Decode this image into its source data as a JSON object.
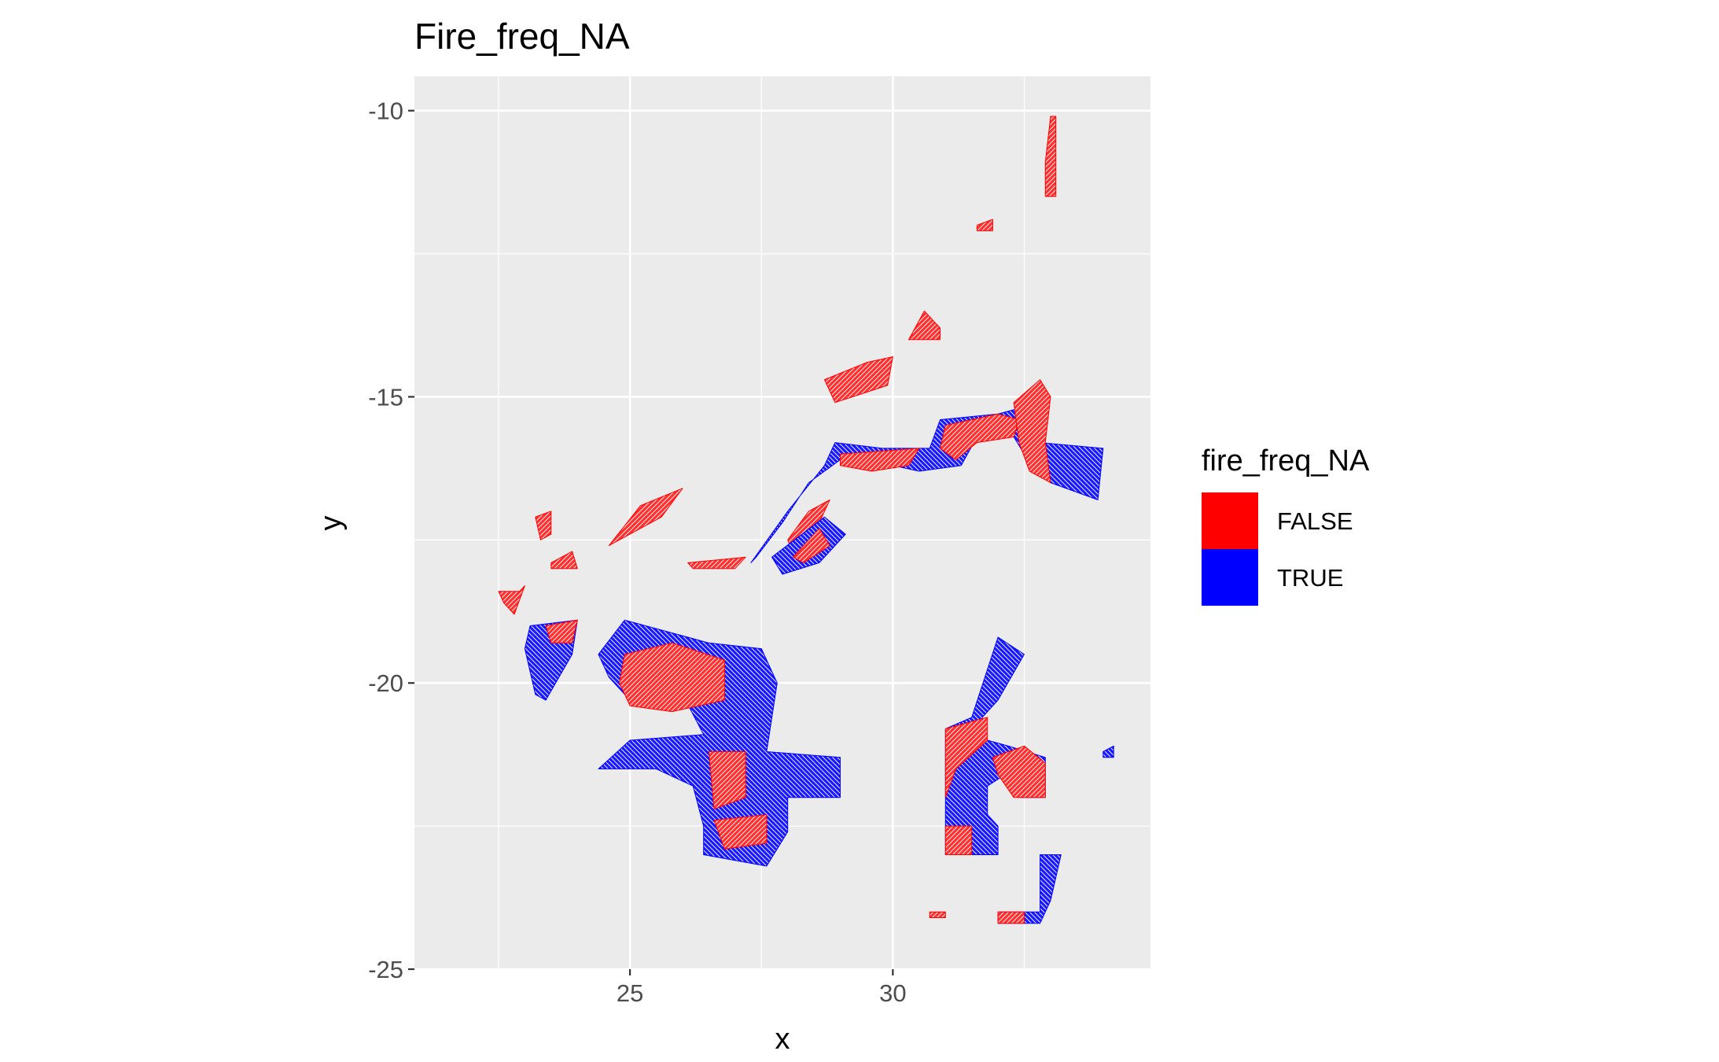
{
  "chart_data": {
    "type": "heatmap",
    "title": "Fire_freq_NA",
    "xlabel": "x",
    "ylabel": "y",
    "xlim": [
      20.9,
      34.9
    ],
    "ylim": [
      -25.0,
      -9.4
    ],
    "x_ticks": [
      25,
      30
    ],
    "y_ticks": [
      -10,
      -15,
      -20,
      -25
    ],
    "grid": true,
    "legend": {
      "title": "fire_freq_NA",
      "position": "right",
      "entries": [
        {
          "label": "FALSE",
          "color": "#ff0000"
        },
        {
          "label": "TRUE",
          "color": "#0000ff"
        }
      ]
    },
    "regions": [
      {
        "category": "FALSE",
        "points": [
          [
            33.0,
            -10.1
          ],
          [
            33.1,
            -10.1
          ],
          [
            33.1,
            -11.5
          ],
          [
            32.9,
            -11.5
          ],
          [
            32.9,
            -10.9
          ]
        ]
      },
      {
        "category": "FALSE",
        "points": [
          [
            31.6,
            -12.0
          ],
          [
            31.9,
            -11.9
          ],
          [
            31.9,
            -12.1
          ],
          [
            31.6,
            -12.1
          ]
        ]
      },
      {
        "category": "FALSE",
        "points": [
          [
            30.3,
            -14.0
          ],
          [
            30.6,
            -13.5
          ],
          [
            30.9,
            -13.8
          ],
          [
            30.9,
            -14.0
          ]
        ]
      },
      {
        "category": "FALSE",
        "points": [
          [
            28.7,
            -14.7
          ],
          [
            29.5,
            -14.4
          ],
          [
            30.0,
            -14.3
          ],
          [
            29.9,
            -14.8
          ],
          [
            28.9,
            -15.1
          ]
        ]
      },
      {
        "category": "FALSE",
        "points": [
          [
            23.2,
            -17.1
          ],
          [
            23.5,
            -17.0
          ],
          [
            23.5,
            -17.4
          ],
          [
            23.3,
            -17.5
          ]
        ]
      },
      {
        "category": "FALSE",
        "points": [
          [
            23.5,
            -17.9
          ],
          [
            23.9,
            -17.7
          ],
          [
            24.0,
            -18.0
          ],
          [
            23.5,
            -18.0
          ]
        ]
      },
      {
        "category": "FALSE",
        "points": [
          [
            24.6,
            -17.6
          ],
          [
            25.2,
            -16.9
          ],
          [
            26.0,
            -16.6
          ],
          [
            25.6,
            -17.1
          ],
          [
            24.8,
            -17.5
          ]
        ]
      },
      {
        "category": "FALSE",
        "points": [
          [
            22.5,
            -18.4
          ],
          [
            22.9,
            -18.4
          ],
          [
            23.0,
            -18.3
          ],
          [
            22.8,
            -18.8
          ],
          [
            22.6,
            -18.6
          ]
        ]
      },
      {
        "category": "TRUE",
        "points": [
          [
            23.1,
            -19.0
          ],
          [
            24.0,
            -18.9
          ],
          [
            23.9,
            -19.5
          ],
          [
            23.4,
            -20.3
          ],
          [
            23.2,
            -20.2
          ],
          [
            23.0,
            -19.4
          ]
        ]
      },
      {
        "category": "FALSE",
        "points": [
          [
            23.4,
            -19.0
          ],
          [
            24.0,
            -18.9
          ],
          [
            23.9,
            -19.3
          ],
          [
            23.5,
            -19.3
          ]
        ]
      },
      {
        "category": "TRUE",
        "points": [
          [
            24.4,
            -19.5
          ],
          [
            24.9,
            -18.9
          ],
          [
            26.5,
            -19.3
          ],
          [
            27.5,
            -19.4
          ],
          [
            27.8,
            -20.0
          ],
          [
            27.6,
            -21.2
          ],
          [
            29.0,
            -21.3
          ],
          [
            29.0,
            -22.0
          ],
          [
            28.0,
            -22.0
          ],
          [
            28.0,
            -22.6
          ],
          [
            27.6,
            -23.2
          ],
          [
            26.4,
            -23.0
          ],
          [
            26.4,
            -22.5
          ],
          [
            26.2,
            -21.8
          ],
          [
            25.5,
            -21.5
          ],
          [
            24.4,
            -21.5
          ],
          [
            25.0,
            -21.0
          ],
          [
            26.4,
            -20.9
          ],
          [
            26.0,
            -20.2
          ],
          [
            25.0,
            -20.3
          ],
          [
            24.6,
            -19.9
          ]
        ]
      },
      {
        "category": "FALSE",
        "points": [
          [
            24.9,
            -19.5
          ],
          [
            25.8,
            -19.3
          ],
          [
            26.8,
            -19.6
          ],
          [
            26.8,
            -20.3
          ],
          [
            25.8,
            -20.5
          ],
          [
            25.0,
            -20.4
          ],
          [
            24.8,
            -20.0
          ]
        ]
      },
      {
        "category": "FALSE",
        "points": [
          [
            26.5,
            -21.2
          ],
          [
            27.2,
            -21.2
          ],
          [
            27.2,
            -22.0
          ],
          [
            26.6,
            -22.2
          ]
        ]
      },
      {
        "category": "FALSE",
        "points": [
          [
            26.6,
            -22.4
          ],
          [
            27.6,
            -22.3
          ],
          [
            27.6,
            -22.8
          ],
          [
            26.8,
            -22.9
          ]
        ]
      },
      {
        "category": "TRUE",
        "points": [
          [
            27.3,
            -17.9
          ],
          [
            28.0,
            -17.0
          ],
          [
            28.7,
            -16.2
          ],
          [
            28.9,
            -15.8
          ],
          [
            29.8,
            -15.9
          ],
          [
            30.7,
            -15.9
          ],
          [
            30.9,
            -15.4
          ],
          [
            32.0,
            -15.3
          ],
          [
            32.8,
            -15.1
          ],
          [
            32.8,
            -15.8
          ],
          [
            34.0,
            -15.9
          ],
          [
            33.9,
            -16.8
          ],
          [
            33.0,
            -16.5
          ],
          [
            32.5,
            -16.0
          ],
          [
            32.3,
            -15.7
          ],
          [
            31.6,
            -15.7
          ],
          [
            31.3,
            -16.2
          ],
          [
            30.5,
            -16.3
          ],
          [
            30.0,
            -16.2
          ],
          [
            29.0,
            -16.1
          ],
          [
            28.4,
            -16.5
          ],
          [
            27.9,
            -17.2
          ],
          [
            27.4,
            -17.8
          ]
        ]
      },
      {
        "category": "FALSE",
        "points": [
          [
            31.0,
            -15.5
          ],
          [
            32.0,
            -15.3
          ],
          [
            32.4,
            -15.4
          ],
          [
            32.3,
            -15.7
          ],
          [
            31.6,
            -15.8
          ],
          [
            31.2,
            -16.1
          ],
          [
            30.9,
            -15.9
          ]
        ]
      },
      {
        "category": "FALSE",
        "points": [
          [
            32.3,
            -15.1
          ],
          [
            32.8,
            -14.7
          ],
          [
            33.0,
            -15.0
          ],
          [
            32.9,
            -15.8
          ],
          [
            33.0,
            -16.5
          ],
          [
            32.6,
            -16.3
          ],
          [
            32.4,
            -15.8
          ]
        ]
      },
      {
        "category": "FALSE",
        "points": [
          [
            29.0,
            -16.0
          ],
          [
            30.5,
            -15.9
          ],
          [
            30.3,
            -16.2
          ],
          [
            29.6,
            -16.3
          ],
          [
            29.0,
            -16.2
          ]
        ]
      },
      {
        "category": "FALSE",
        "points": [
          [
            28.0,
            -17.5
          ],
          [
            28.4,
            -17.0
          ],
          [
            28.8,
            -16.8
          ],
          [
            28.2,
            -18.0
          ]
        ]
      },
      {
        "category": "FALSE",
        "points": [
          [
            26.1,
            -17.9
          ],
          [
            27.2,
            -17.8
          ],
          [
            27.0,
            -18.0
          ],
          [
            26.2,
            -18.0
          ]
        ]
      },
      {
        "category": "TRUE",
        "points": [
          [
            27.7,
            -17.8
          ],
          [
            28.7,
            -17.1
          ],
          [
            29.1,
            -17.4
          ],
          [
            28.6,
            -17.9
          ],
          [
            27.9,
            -18.1
          ]
        ]
      },
      {
        "category": "FALSE",
        "points": [
          [
            28.1,
            -17.8
          ],
          [
            28.6,
            -17.3
          ],
          [
            28.8,
            -17.6
          ],
          [
            28.3,
            -17.9
          ]
        ]
      },
      {
        "category": "TRUE",
        "points": [
          [
            32.0,
            -19.2
          ],
          [
            32.5,
            -19.5
          ],
          [
            32.0,
            -20.3
          ],
          [
            31.7,
            -20.6
          ],
          [
            31.8,
            -21.0
          ],
          [
            32.2,
            -21.1
          ],
          [
            32.9,
            -21.3
          ],
          [
            32.9,
            -22.0
          ],
          [
            32.4,
            -22.0
          ],
          [
            32.3,
            -21.5
          ],
          [
            31.8,
            -21.8
          ],
          [
            31.8,
            -22.3
          ],
          [
            32.0,
            -22.5
          ],
          [
            32.0,
            -23.0
          ],
          [
            31.0,
            -23.0
          ],
          [
            31.0,
            -20.8
          ],
          [
            31.5,
            -20.6
          ]
        ]
      },
      {
        "category": "FALSE",
        "points": [
          [
            31.0,
            -20.8
          ],
          [
            31.8,
            -20.6
          ],
          [
            31.8,
            -21.0
          ],
          [
            31.2,
            -21.5
          ],
          [
            31.0,
            -22.0
          ]
        ]
      },
      {
        "category": "FALSE",
        "points": [
          [
            31.9,
            -21.3
          ],
          [
            32.5,
            -21.1
          ],
          [
            32.9,
            -21.4
          ],
          [
            32.9,
            -22.0
          ],
          [
            32.3,
            -22.0
          ],
          [
            32.0,
            -21.6
          ]
        ]
      },
      {
        "category": "FALSE",
        "points": [
          [
            31.0,
            -22.5
          ],
          [
            31.5,
            -22.5
          ],
          [
            31.5,
            -23.0
          ],
          [
            31.0,
            -23.0
          ]
        ]
      },
      {
        "category": "TRUE",
        "points": [
          [
            32.0,
            -24.0
          ],
          [
            32.8,
            -24.0
          ],
          [
            32.8,
            -23.0
          ],
          [
            33.2,
            -23.0
          ],
          [
            33.0,
            -23.8
          ],
          [
            32.8,
            -24.2
          ],
          [
            32.0,
            -24.2
          ]
        ]
      },
      {
        "category": "FALSE",
        "points": [
          [
            32.0,
            -24.0
          ],
          [
            32.5,
            -24.0
          ],
          [
            32.5,
            -24.2
          ],
          [
            32.0,
            -24.2
          ]
        ]
      },
      {
        "category": "TRUE",
        "points": [
          [
            34.0,
            -21.2
          ],
          [
            34.2,
            -21.1
          ],
          [
            34.2,
            -21.3
          ],
          [
            34.0,
            -21.3
          ]
        ]
      },
      {
        "category": "FALSE",
        "points": [
          [
            30.7,
            -24.0
          ],
          [
            31.0,
            -24.0
          ],
          [
            31.0,
            -24.1
          ],
          [
            30.7,
            -24.1
          ]
        ]
      }
    ]
  }
}
